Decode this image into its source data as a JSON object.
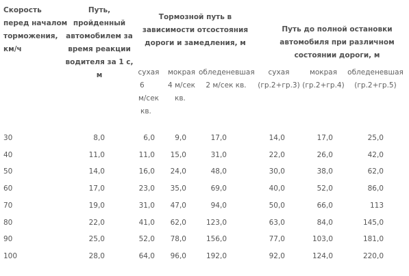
{
  "table": {
    "headers": {
      "speed": [
        "Скорость",
        "перед началом",
        "торможения,",
        "км/ч"
      ],
      "reaction": [
        "Путь,",
        "пройденный",
        "автомобилем за",
        "время реакции",
        "водителя за 1 с,",
        "м"
      ],
      "braking": [
        "Тормозной путь в",
        "зависимости отсостояния",
        "дороги и замедления, м"
      ],
      "stopping": [
        "Путь до полной остановки",
        "автомобиля при различном",
        "состоянии дороги, м"
      ]
    },
    "subheaders": {
      "dry_b": [
        "сухая",
        "6",
        "м/сек",
        "кв."
      ],
      "wet_b": [
        "мокрая",
        "4 м/сек",
        "кв."
      ],
      "icy_b": [
        "обледеневшая",
        "2 м/сек кв."
      ],
      "dry_s": [
        "сухая",
        "(гр.2+гр.3)"
      ],
      "wet_s": [
        "мокрая",
        "(гр.2+гр.4)"
      ],
      "icy_s": [
        "обледеневшая",
        "(гр.2+гр.5)"
      ]
    },
    "rows": [
      [
        "30",
        "8,0",
        "6,0",
        "9,0",
        "17,0",
        "14,0",
        "17,0",
        "25,0"
      ],
      [
        "40",
        "11,0",
        "11,0",
        "15,0",
        "31,0",
        "22,0",
        "26,0",
        "42,0"
      ],
      [
        "50",
        "14,0",
        "16,0",
        "24,0",
        "48,0",
        "30,0",
        "38,0",
        "62,0"
      ],
      [
        "60",
        "17,0",
        "23,0",
        "35,0",
        "69,0",
        "40,0",
        "52,0",
        "86,0"
      ],
      [
        "70",
        "19,0",
        "31,0",
        "47,0",
        "94,0",
        "50,0",
        "66,0",
        "113"
      ],
      [
        "80",
        "22,0",
        "41,0",
        "62,0",
        "123,0",
        "63,0",
        "84,0",
        "145,0"
      ],
      [
        "90",
        "25,0",
        "52,0",
        "78,0",
        "156,0",
        "77,0",
        "103,0",
        "181,0"
      ],
      [
        "100",
        "28,0",
        "64,0",
        "96,0",
        "192,0",
        "92,0",
        "124,0",
        "220,0"
      ]
    ]
  }
}
